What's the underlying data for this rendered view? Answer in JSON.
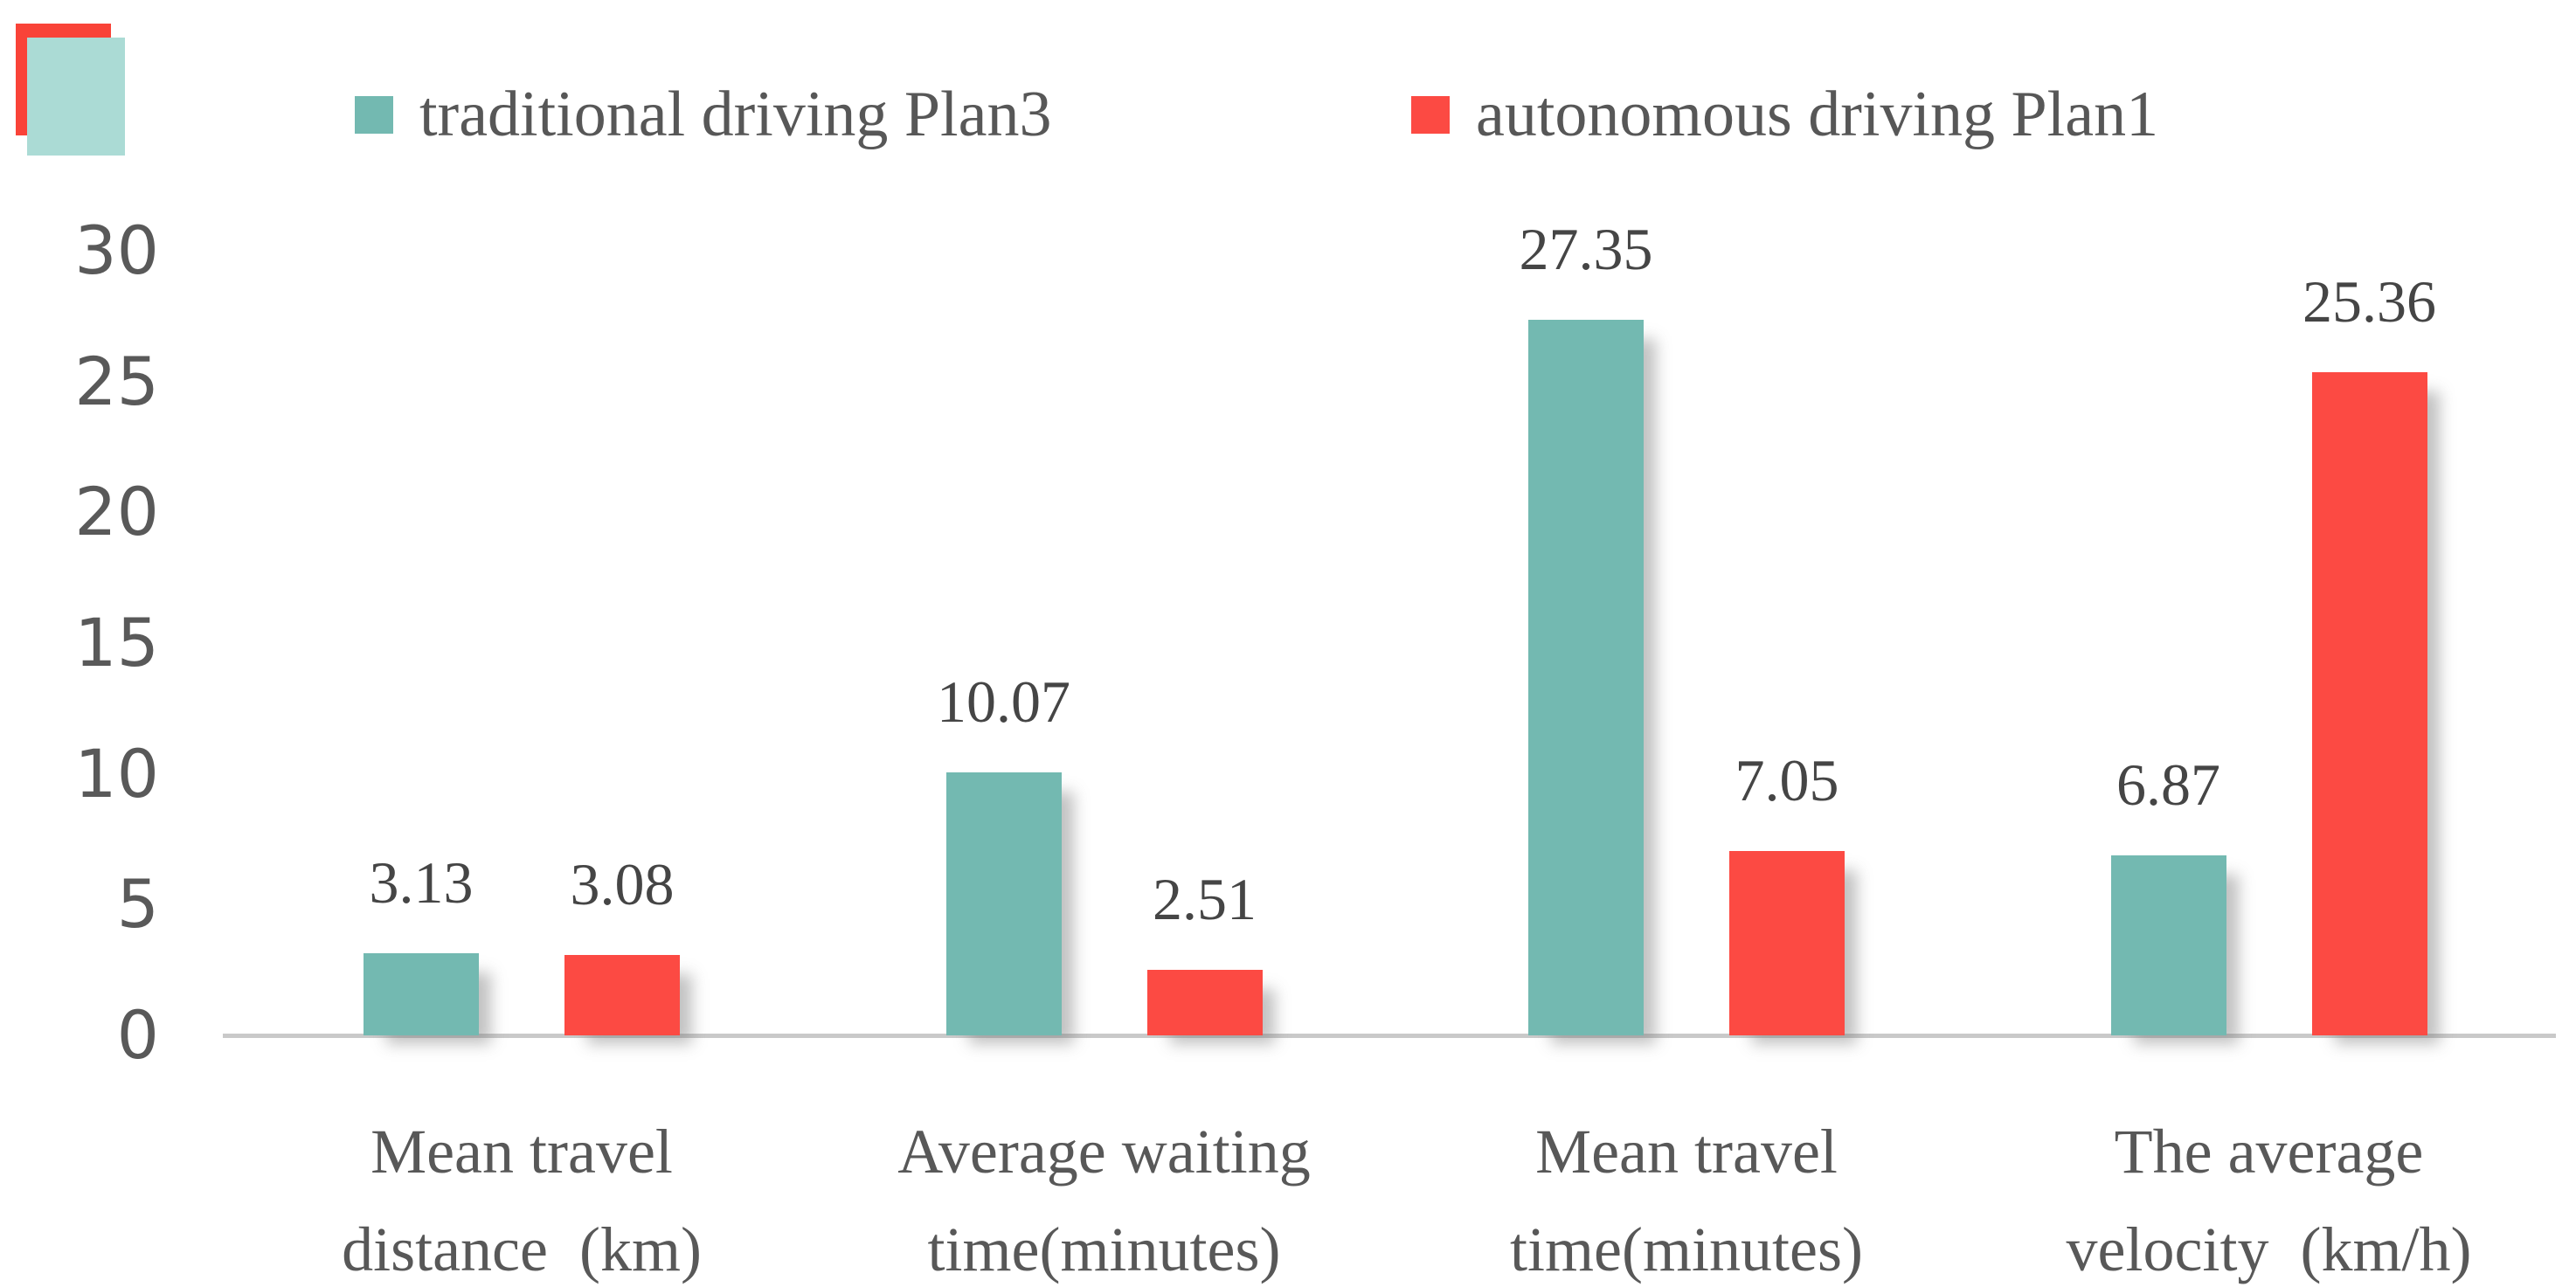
{
  "decoration": {
    "red_square_color": "#f94338",
    "teal_square_color": "#abdbd5"
  },
  "legend": {
    "items": [
      {
        "label": "traditional driving Plan3",
        "color": "#73b9b1"
      },
      {
        "label": "autonomous driving Plan1",
        "color": "#fc4a43"
      }
    ]
  },
  "chart_data": {
    "type": "bar",
    "title": "",
    "xlabel": "",
    "ylabel": "",
    "ylim": [
      0,
      30
    ],
    "grid": false,
    "legend_position": "top",
    "ytick_labels": [
      "0",
      "5",
      "10",
      "15",
      "20",
      "25",
      "30"
    ],
    "yticks": [
      0,
      5,
      10,
      15,
      20,
      25,
      30
    ],
    "categories": [
      {
        "lines": [
          "Mean travel",
          "distance  (km)"
        ]
      },
      {
        "lines": [
          "Average waiting",
          "time(minutes)"
        ]
      },
      {
        "lines": [
          "Mean travel",
          "time(minutes)"
        ]
      },
      {
        "lines": [
          "The average",
          "velocity  (km/h)"
        ]
      }
    ],
    "series": [
      {
        "name": "traditional driving Plan3",
        "color": "#73b9b1",
        "values": [
          3.13,
          10.07,
          27.35,
          6.87
        ],
        "labels": [
          "3.13",
          "10.07",
          "27.35",
          "6.87"
        ]
      },
      {
        "name": "autonomous driving Plan1",
        "color": "#fc4a43",
        "values": [
          3.08,
          2.51,
          7.05,
          25.36
        ],
        "labels": [
          "3.08",
          "2.51",
          "7.05",
          "25.36"
        ]
      }
    ]
  }
}
